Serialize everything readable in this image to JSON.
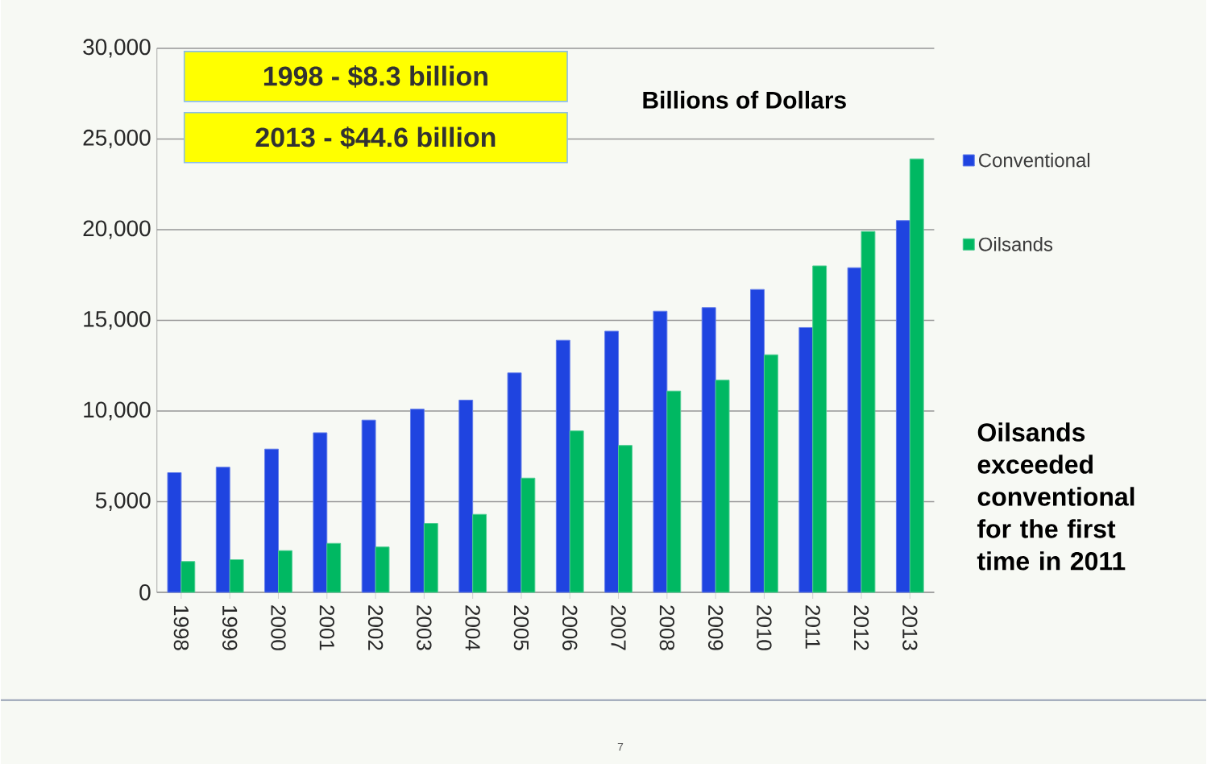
{
  "chart_data": {
    "type": "bar",
    "categories": [
      "1998",
      "1999",
      "2000",
      "2001",
      "2002",
      "2003",
      "2004",
      "2005",
      "2006",
      "2007",
      "2008",
      "2009",
      "2010",
      "2011",
      "2012",
      "2013"
    ],
    "series": [
      {
        "name": "Conventional",
        "color": "#1f44e0",
        "values": [
          6600,
          6900,
          7900,
          8800,
          9500,
          10100,
          10600,
          12100,
          13900,
          14400,
          15500,
          15700,
          16700,
          14600,
          17900,
          20500
        ]
      },
      {
        "name": "Oilsands",
        "color": "#00b862",
        "values": [
          1700,
          1800,
          2300,
          2700,
          2500,
          3800,
          4300,
          6300,
          8900,
          8100,
          11100,
          11700,
          13100,
          18000,
          19900,
          23900
        ]
      }
    ],
    "ylim": [
      0,
      30000
    ],
    "yticks": [
      0,
      {
        "value": 5000,
        "label": "5,000"
      },
      {
        "value": 10000,
        "label": "10,000"
      },
      {
        "value": 15000,
        "label": "15,000"
      },
      {
        "value": 20000,
        "label": "20,000"
      },
      {
        "value": 25000,
        "label": "25,000"
      },
      {
        "value": 30000,
        "label": "30,000"
      }
    ],
    "grid": "y",
    "legend": "right",
    "annotations": [
      "1998 - $8.3 billion",
      "2013 - $44.6 billion",
      "Billions of Dollars",
      "Oilsands exceeded conventional for the first time in 2011",
      "7"
    ]
  }
}
